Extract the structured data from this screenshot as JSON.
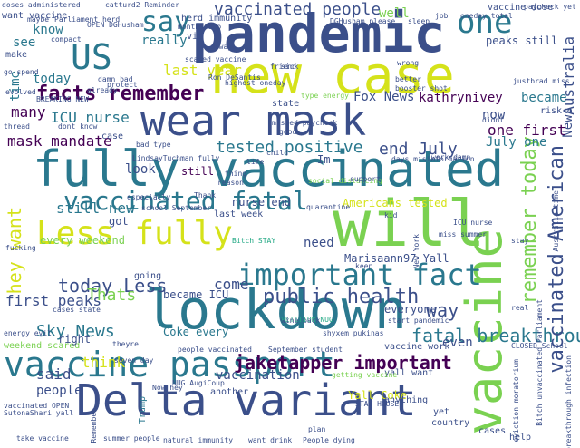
{
  "palette": {
    "background": "#ffffff",
    "navy": "#3b4f8a",
    "teal": "#2a788e",
    "green": "#22a884",
    "lime": "#7ad151",
    "yellow": "#d5e21a",
    "purple": "#440154",
    "indigo": "#472c7a",
    "steel": "#31688e"
  },
  "words": [
    {
      "text": "pandemic",
      "color": "#3b4f8a"
    },
    {
      "text": "new case",
      "color": "#d5e21a"
    },
    {
      "text": "wear mask",
      "color": "#3b4f8a"
    },
    {
      "text": "fully vaccinated",
      "color": "#2a788e"
    },
    {
      "text": "will",
      "color": "#7ad151"
    },
    {
      "text": "lockdown",
      "color": "#2a788e"
    },
    {
      "text": "vaccine passport",
      "color": "#2a788e"
    },
    {
      "text": "Delta variant",
      "color": "#3b4f8a"
    },
    {
      "text": "vaccine",
      "color": "#7ad151"
    },
    {
      "text": "Less fully",
      "color": "#d5e21a"
    },
    {
      "text": "important fact",
      "color": "#2a788e"
    },
    {
      "text": "vaccinated fatal",
      "color": "#2a788e"
    },
    {
      "text": "facts remember",
      "color": "#440154"
    },
    {
      "text": "US",
      "color": "#2a788e"
    },
    {
      "text": "say",
      "color": "#2a788e"
    },
    {
      "text": "one",
      "color": "#2a788e"
    },
    {
      "text": "vaccinated people",
      "color": "#3b4f8a"
    },
    {
      "text": "last year",
      "color": "#d5e21a"
    },
    {
      "text": "really",
      "color": "#2a788e"
    },
    {
      "text": "know",
      "color": "#2a788e"
    },
    {
      "text": "see",
      "color": "#2a788e"
    },
    {
      "text": "today Less",
      "color": "#3b4f8a"
    },
    {
      "text": "first peaks",
      "color": "#3b4f8a"
    },
    {
      "text": "Thats",
      "color": "#7ad151"
    },
    {
      "text": "Sky News",
      "color": "#2a788e"
    },
    {
      "text": "public health",
      "color": "#3b4f8a"
    },
    {
      "text": "jaketapper important",
      "color": "#440154"
    },
    {
      "text": "fatal breakthrou",
      "color": "#2a788e"
    },
    {
      "text": "remember today",
      "color": "#7ad151"
    },
    {
      "text": "vaccinated American",
      "color": "#3b4f8a"
    },
    {
      "text": "tested positive",
      "color": "#2a788e"
    },
    {
      "text": "end July",
      "color": "#3b4f8a"
    },
    {
      "text": "mask mandate",
      "color": "#440154"
    },
    {
      "text": "ICU nurse",
      "color": "#2a788e"
    },
    {
      "text": "still new",
      "color": "#2a788e"
    },
    {
      "text": "hey want",
      "color": "#d5e21a"
    },
    {
      "text": "every weekend",
      "color": "#7ad151"
    },
    {
      "text": "Fox News",
      "color": "#3b4f8a"
    },
    {
      "text": "kathrynivey",
      "color": "#440154"
    },
    {
      "text": "became",
      "color": "#2a788e"
    },
    {
      "text": "Australia",
      "color": "#3b4f8a"
    },
    {
      "text": "well",
      "color": "#7ad151"
    },
    {
      "text": "News",
      "color": "#3b4f8a"
    },
    {
      "text": "one first",
      "color": "#440154"
    },
    {
      "text": "July one",
      "color": "#2a788e"
    },
    {
      "text": "peaks still",
      "color": "#3b4f8a"
    },
    {
      "text": "now",
      "color": "#3b4f8a"
    },
    {
      "text": "many",
      "color": "#440154"
    },
    {
      "text": "today",
      "color": "#2a788e"
    },
    {
      "text": "nurse end",
      "color": "#3b4f8a"
    },
    {
      "text": "Americans tested",
      "color": "#d5e21a"
    },
    {
      "text": "need",
      "color": "#3b4f8a"
    },
    {
      "text": "come",
      "color": "#3b4f8a"
    },
    {
      "text": "became ICU",
      "color": "#3b4f8a"
    },
    {
      "text": "way",
      "color": "#3b4f8a"
    },
    {
      "text": "think",
      "color": "#d5e21a"
    },
    {
      "text": "said",
      "color": "#3b4f8a"
    },
    {
      "text": "people",
      "color": "#3b4f8a"
    },
    {
      "text": "Yall Coke",
      "color": "#d5e21a"
    },
    {
      "text": "weekend scared",
      "color": "#7ad151"
    },
    {
      "text": "vaccine work",
      "color": "#3b4f8a"
    },
    {
      "text": "yall want",
      "color": "#3b4f8a"
    },
    {
      "text": "even",
      "color": "#3b4f8a"
    },
    {
      "text": "Marisaann97 Yall",
      "color": "#3b4f8a"
    },
    {
      "text": "vaccination",
      "color": "#3b4f8a"
    },
    {
      "text": "right",
      "color": "#3b4f8a"
    },
    {
      "text": "time",
      "color": "#2a788e"
    },
    {
      "text": "herd immunity",
      "color": "#3b4f8a"
    },
    {
      "text": "look",
      "color": "#3b4f8a"
    },
    {
      "text": "still",
      "color": "#440154"
    },
    {
      "text": "want vaccine",
      "color": "#3b4f8a"
    },
    {
      "text": "vaccine dose",
      "color": "#3b4f8a"
    },
    {
      "text": "PETITION NUG",
      "color": "#22a884"
    },
    {
      "text": "Coke every",
      "color": "#2a788e"
    },
    {
      "text": "got",
      "color": "#3b4f8a"
    },
    {
      "text": "bad type",
      "color": "#3b4f8a"
    },
    {
      "text": "Im",
      "color": "#3b4f8a"
    },
    {
      "text": "last week",
      "color": "#3b4f8a"
    },
    {
      "text": "wine park",
      "color": "#3b4f8a"
    },
    {
      "text": "going",
      "color": "#3b4f8a"
    },
    {
      "text": "Bitch STAY",
      "color": "#22a884"
    },
    {
      "text": "start pandemic",
      "color": "#3b4f8a"
    },
    {
      "text": "everyone",
      "color": "#3b4f8a"
    },
    {
      "text": "Now hey",
      "color": "#3b4f8a"
    },
    {
      "text": "Trump",
      "color": "#2a788e"
    },
    {
      "text": "another",
      "color": "#3b4f8a"
    },
    {
      "text": "summer people",
      "color": "#3b4f8a"
    },
    {
      "text": "natural immunity",
      "color": "#3b4f8a"
    },
    {
      "text": "want drink",
      "color": "#3b4f8a"
    },
    {
      "text": "People dying",
      "color": "#3b4f8a"
    },
    {
      "text": "take vaccine",
      "color": "#3b4f8a"
    },
    {
      "text": "country",
      "color": "#3b4f8a"
    },
    {
      "text": "cases",
      "color": "#3b4f8a"
    },
    {
      "text": "social distancing",
      "color": "#7ad151"
    },
    {
      "text": "months ago",
      "color": "#3b4f8a"
    },
    {
      "text": "New York",
      "color": "#3b4f8a"
    },
    {
      "text": "Ron DeSantis",
      "color": "#3b4f8a"
    },
    {
      "text": "doses administered",
      "color": "#3b4f8a"
    },
    {
      "text": "catturd2 Reminder",
      "color": "#3b4f8a"
    },
    {
      "text": "maybe",
      "color": "#3b4f8a"
    },
    {
      "text": "via",
      "color": "#3b4f8a"
    },
    {
      "text": "DGHusham please",
      "color": "#3b4f8a"
    },
    {
      "text": "sleep",
      "color": "#3b4f8a"
    },
    {
      "text": "oneday total",
      "color": "#3b4f8a"
    },
    {
      "text": "job",
      "color": "#3b4f8a"
    },
    {
      "text": "compact",
      "color": "#3b4f8a"
    },
    {
      "text": "make",
      "color": "#3b4f8a"
    },
    {
      "text": "go spend",
      "color": "#3b4f8a"
    },
    {
      "text": "friend",
      "color": "#3b4f8a"
    },
    {
      "text": "justbrad miss",
      "color": "#3b4f8a"
    },
    {
      "text": "risk",
      "color": "#3b4f8a"
    },
    {
      "text": "scared vaccine",
      "color": "#3b4f8a"
    },
    {
      "text": "alway",
      "color": "#3b4f8a"
    },
    {
      "text": "highest oneday",
      "color": "#3b4f8a"
    },
    {
      "text": "type energy",
      "color": "#7ad151"
    },
    {
      "text": "state",
      "color": "#3b4f8a"
    },
    {
      "text": "didnt",
      "color": "#3b4f8a"
    },
    {
      "text": "good",
      "color": "#3b4f8a"
    },
    {
      "text": "work damn",
      "color": "#3b4f8a"
    },
    {
      "text": "quarantine",
      "color": "#3b4f8a"
    },
    {
      "text": "thing",
      "color": "#3b4f8a"
    },
    {
      "text": "Thank",
      "color": "#3b4f8a"
    },
    {
      "text": "reason",
      "color": "#3b4f8a"
    },
    {
      "text": "support",
      "color": "#3b4f8a"
    },
    {
      "text": "kid",
      "color": "#3b4f8a"
    },
    {
      "text": "miss summer",
      "color": "#3b4f8a"
    },
    {
      "text": "real",
      "color": "#3b4f8a"
    },
    {
      "text": "fucking",
      "color": "#3b4f8a"
    },
    {
      "text": "keep",
      "color": "#3b4f8a"
    },
    {
      "text": "energy evil",
      "color": "#3b4f8a"
    },
    {
      "text": "cases state",
      "color": "#3b4f8a"
    },
    {
      "text": "September student",
      "color": "#3b4f8a"
    },
    {
      "text": "seven day",
      "color": "#3b4f8a"
    },
    {
      "text": "getting vaccine",
      "color": "#7ad151"
    },
    {
      "text": "anything",
      "color": "#3b4f8a"
    },
    {
      "text": "yet",
      "color": "#3b4f8a"
    },
    {
      "text": "help",
      "color": "#3b4f8a"
    },
    {
      "text": "SutonaShari yall",
      "color": "#3b4f8a"
    },
    {
      "text": "NUG AugiCoup",
      "color": "#3b4f8a"
    },
    {
      "text": "STAY HOUSE",
      "color": "#3b4f8a"
    },
    {
      "text": "vaccinated OPEN",
      "color": "#3b4f8a"
    },
    {
      "text": "Parliament herd",
      "color": "#3b4f8a"
    },
    {
      "text": "damn bad",
      "color": "#3b4f8a"
    },
    {
      "text": "already",
      "color": "#3b4f8a"
    },
    {
      "text": "thread",
      "color": "#3b4f8a"
    },
    {
      "text": "dont know",
      "color": "#3b4f8a"
    },
    {
      "text": "missed paycheck",
      "color": "#3b4f8a"
    },
    {
      "text": "wrong",
      "color": "#3b4f8a"
    },
    {
      "text": "sick",
      "color": "#3b4f8a"
    },
    {
      "text": "better",
      "color": "#3b4f8a"
    },
    {
      "text": "booster shot",
      "color": "#3b4f8a"
    },
    {
      "text": "days misinformation",
      "color": "#3b4f8a"
    },
    {
      "text": "CLOSED School",
      "color": "#3b4f8a"
    },
    {
      "text": "Remember",
      "color": "#3b4f8a"
    },
    {
      "text": "LindsayTuchman fully",
      "color": "#3b4f8a"
    },
    {
      "text": "life",
      "color": "#3b4f8a"
    },
    {
      "text": "child",
      "color": "#3b4f8a"
    },
    {
      "text": "theyre",
      "color": "#3b4f8a"
    },
    {
      "text": "plan",
      "color": "#3b4f8a"
    },
    {
      "text": "case",
      "color": "#3b4f8a"
    },
    {
      "text": "BREAKING NEW",
      "color": "#3b4f8a"
    },
    {
      "text": "OPEN DGHusham",
      "color": "#3b4f8a"
    },
    {
      "text": "especially",
      "color": "#3b4f8a"
    },
    {
      "text": "shyxem pukinas",
      "color": "#3b4f8a"
    },
    {
      "text": "school September",
      "color": "#3b4f8a"
    },
    {
      "text": "people vaccinated",
      "color": "#3b4f8a"
    },
    {
      "text": "evolved",
      "color": "#3b4f8a"
    },
    {
      "text": "protect",
      "color": "#3b4f8a"
    },
    {
      "text": "ICU nurse",
      "color": "#3b4f8a"
    },
    {
      "text": "paycheck yet",
      "color": "#3b4f8a"
    },
    {
      "text": "stay",
      "color": "#3b4f8a"
    },
    {
      "text": "Bitch unvaccinated Parliament",
      "color": "#3b4f8a"
    },
    {
      "text": "eviction moratorium",
      "color": "#3b4f8a"
    },
    {
      "text": "breakthrough infection",
      "color": "#3b4f8a"
    },
    {
      "text": "Australia time",
      "color": "#3b4f8a"
    }
  ]
}
